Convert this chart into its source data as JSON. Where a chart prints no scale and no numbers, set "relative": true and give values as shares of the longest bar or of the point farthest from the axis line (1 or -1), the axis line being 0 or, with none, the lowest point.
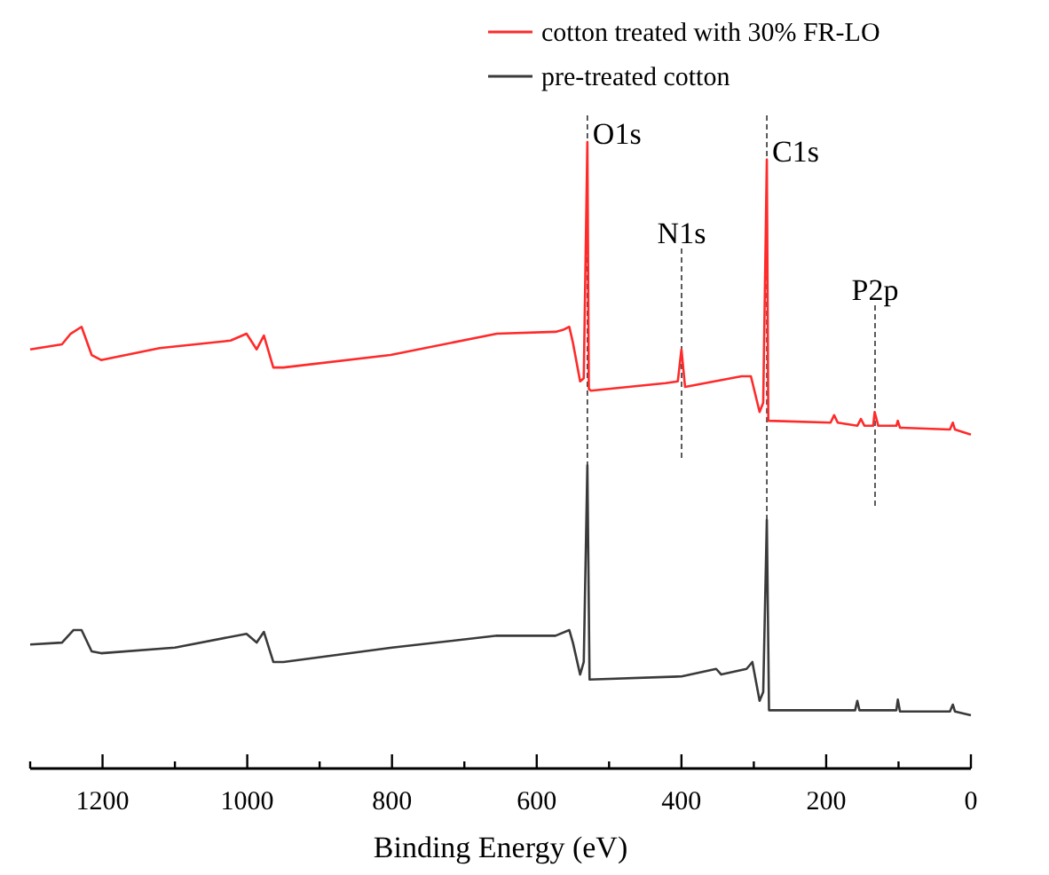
{
  "chart_data": {
    "type": "line",
    "relative": true,
    "xlabel": "Binding Energy (eV)",
    "xlim": [
      1300,
      0
    ],
    "xticks": [
      {
        "value": 1300,
        "label": null
      },
      1200,
      {
        "value": 1100,
        "label": null
      },
      1000,
      {
        "value": 900,
        "label": null
      },
      800,
      {
        "value": 700,
        "label": null
      },
      600,
      {
        "value": 500,
        "label": null
      },
      400,
      {
        "value": 300,
        "label": null
      },
      200,
      {
        "value": 100,
        "label": null
      },
      0
    ],
    "legend": "top right",
    "grid": false,
    "marker": "none",
    "line_style": "solid",
    "annotations": [
      {
        "text": "O1s",
        "x": 530,
        "y": 1
      },
      "N1s",
      {
        "text": "C1s",
        "x": 282,
        "y": 0.972
      },
      "P2p"
    ],
    "series": [
      {
        "name": "cotton treated with 30% FR-LO",
        "color": "#ff2a2a",
        "x": [
          1300,
          1256,
          1244,
          1229,
          1215,
          1202,
          1121,
          1023,
          1001,
          987,
          977,
          964,
          950,
          802,
          655,
          574,
          564,
          555,
          550,
          540,
          535,
          530,
          528,
          525,
          422,
          405,
          400,
          395,
          317,
          304,
          292,
          287,
          282,
          280,
          194,
          189,
          184,
          157,
          152,
          147,
          135,
          133,
          128,
          103,
          101,
          98,
          29,
          25,
          22,
          0
        ],
        "values": [
          0.669,
          0.677,
          0.694,
          0.705,
          0.66,
          0.652,
          0.671,
          0.683,
          0.694,
          0.669,
          0.691,
          0.64,
          0.64,
          0.66,
          0.694,
          0.697,
          0.7,
          0.705,
          0.68,
          0.618,
          0.623,
          1,
          0.606,
          0.603,
          0.615,
          0.618,
          0.669,
          0.609,
          0.626,
          0.626,
          0.569,
          0.584,
          0.972,
          0.555,
          0.552,
          0.564,
          0.552,
          0.547,
          0.558,
          0.547,
          0.547,
          0.569,
          0.547,
          0.547,
          0.555,
          0.544,
          0.541,
          0.552,
          0.541,
          0.533
        ]
      },
      {
        "name": "pre-treated cotton",
        "color": "#3a3a3a",
        "x": [
          1300,
          1256,
          1240,
          1229,
          1215,
          1202,
          1100,
          1001,
          987,
          977,
          964,
          950,
          800,
          655,
          574,
          555,
          550,
          540,
          535,
          530,
          527,
          400,
          352,
          345,
          310,
          302,
          292,
          287,
          282,
          279,
          160,
          157,
          154,
          103,
          101,
          98,
          29,
          25,
          22,
          0
        ],
        "values": [
          0.198,
          0.201,
          0.221,
          0.221,
          0.187,
          0.184,
          0.193,
          0.215,
          0.201,
          0.218,
          0.17,
          0.17,
          0.193,
          0.212,
          0.212,
          0.221,
          0.201,
          0.15,
          0.17,
          0.484,
          0.142,
          0.147,
          0.159,
          0.15,
          0.159,
          0.17,
          0.108,
          0.122,
          0.397,
          0.093,
          0.093,
          0.108,
          0.093,
          0.093,
          0.11,
          0.091,
          0.091,
          0.102,
          0.091,
          0.085
        ]
      }
    ]
  }
}
